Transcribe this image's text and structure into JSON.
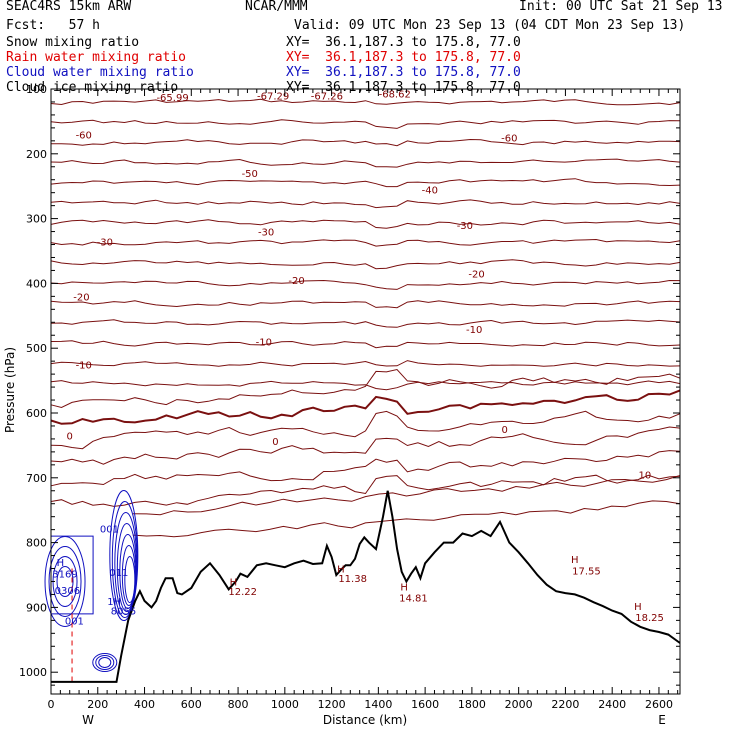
{
  "header": {
    "model": "SEAC4RS 15km ARW",
    "source": "NCAR/MMM",
    "init": "Init: 00 UTC Sat 21 Sep 13",
    "fcst": "Fcst:   57 h",
    "valid": "Valid: 09 UTC Mon 23 Sep 13 (04 CDT Mon 23 Sep 13)"
  },
  "fields": [
    {
      "name": "Snow mixing ratio",
      "xy": "XY=  36.1,187.3 to 175.8, 77.0",
      "color": "#000000"
    },
    {
      "name": "Rain water mixing ratio",
      "xy": "XY=  36.1,187.3 to 175.8, 77.0",
      "color": "#e00000"
    },
    {
      "name": "Cloud water mixing ratio",
      "xy": "XY=  36.1,187.3 to 175.8, 77.0",
      "color": "#1010c0"
    },
    {
      "name": "Cloud ice mixing ratio",
      "xy": "XY=  36.1,187.3 to 175.8, 77.0",
      "color": "#000000"
    }
  ],
  "chart_data": {
    "type": "contour",
    "xlabel": "Distance (km)",
    "ylabel": "Pressure (hPa)",
    "xlim": [
      0,
      2690
    ],
    "ylim": [
      1050,
      100
    ],
    "x_ticks": [
      "0",
      "200",
      "400",
      "600",
      "800",
      "1000",
      "1200",
      "1400",
      "1600",
      "1800",
      "2000",
      "2200",
      "2400",
      "2600"
    ],
    "y_ticks": [
      "100",
      "200",
      "300",
      "400",
      "500",
      "600",
      "700",
      "800",
      "900",
      "1000"
    ],
    "endpoints": {
      "left": "W",
      "right": "E"
    },
    "temperature_contours": [
      {
        "level": -60,
        "pressure": 162
      },
      {
        "level": -50,
        "pressure": 195
      },
      {
        "level": -40,
        "pressure": 240
      },
      {
        "level": -30,
        "pressure": 293
      },
      {
        "level": -20,
        "pressure": 350
      },
      {
        "level": -10,
        "pressure": 425
      },
      {
        "level": 0,
        "pressure": 540
      }
    ],
    "contour_labels": [
      {
        "text": "-65.99",
        "x": 520,
        "p": 112
      },
      {
        "text": "-67.29",
        "x": 950,
        "p": 110
      },
      {
        "text": "-67.26",
        "x": 1180,
        "p": 110
      },
      {
        "text": "-68.62",
        "x": 1470,
        "p": 107
      },
      {
        "text": "-60",
        "x": 140,
        "p": 170
      },
      {
        "text": "-60",
        "x": 1960,
        "p": 175
      },
      {
        "text": "-50",
        "x": 850,
        "p": 230
      },
      {
        "text": "-40",
        "x": 1620,
        "p": 255
      },
      {
        "text": "-30",
        "x": 230,
        "p": 335
      },
      {
        "text": "-30",
        "x": 920,
        "p": 320
      },
      {
        "text": "-30",
        "x": 1770,
        "p": 310
      },
      {
        "text": "-20",
        "x": 130,
        "p": 420
      },
      {
        "text": "-20",
        "x": 1050,
        "p": 395
      },
      {
        "text": "-20",
        "x": 1820,
        "p": 385
      },
      {
        "text": "-10",
        "x": 140,
        "p": 525
      },
      {
        "text": "-10",
        "x": 910,
        "p": 490
      },
      {
        "text": "-10",
        "x": 1810,
        "p": 470
      },
      {
        "text": "10",
        "x": 2540,
        "p": 695
      },
      {
        "text": "0",
        "x": 80,
        "p": 635
      },
      {
        "text": "0",
        "x": 960,
        "p": 643
      },
      {
        "text": "0",
        "x": 1940,
        "p": 625
      }
    ],
    "extrema": [
      {
        "text": "H",
        "x": 780,
        "p": 860
      },
      {
        "text": "12.22",
        "x": 820,
        "p": 875
      },
      {
        "text": "H",
        "x": 1240,
        "p": 840
      },
      {
        "text": "11.38",
        "x": 1290,
        "p": 855
      },
      {
        "text": "H",
        "x": 1510,
        "p": 868
      },
      {
        "text": "14.81",
        "x": 1550,
        "p": 885
      },
      {
        "text": "H",
        "x": 2240,
        "p": 825
      },
      {
        "text": "17.55",
        "x": 2290,
        "p": 843
      },
      {
        "text": "H",
        "x": 2510,
        "p": 898
      },
      {
        "text": "18.25",
        "x": 2560,
        "p": 915
      }
    ],
    "cloud_water_labels": [
      {
        "text": "H",
        "x": 40,
        "p": 830
      },
      {
        "text": "3169",
        "x": 60,
        "p": 848
      },
      {
        "text": "0306",
        "x": 70,
        "p": 873
      },
      {
        "text": "001",
        "x": 250,
        "p": 778
      },
      {
        "text": "011",
        "x": 290,
        "p": 845
      },
      {
        "text": "1H",
        "x": 270,
        "p": 890
      },
      {
        "text": "8055",
        "x": 310,
        "p": 905
      },
      {
        "text": "001",
        "x": 100,
        "p": 920
      }
    ],
    "rain_dash_x": 90,
    "terrain_p": [
      [
        0,
        1015
      ],
      [
        280,
        1015
      ],
      [
        300,
        975
      ],
      [
        330,
        920
      ],
      [
        360,
        890
      ],
      [
        380,
        875
      ],
      [
        400,
        890
      ],
      [
        430,
        900
      ],
      [
        450,
        890
      ],
      [
        470,
        870
      ],
      [
        490,
        855
      ],
      [
        520,
        855
      ],
      [
        540,
        878
      ],
      [
        560,
        880
      ],
      [
        600,
        870
      ],
      [
        640,
        845
      ],
      [
        680,
        832
      ],
      [
        720,
        850
      ],
      [
        760,
        872
      ],
      [
        790,
        860
      ],
      [
        810,
        848
      ],
      [
        840,
        853
      ],
      [
        880,
        835
      ],
      [
        920,
        832
      ],
      [
        960,
        835
      ],
      [
        1000,
        838
      ],
      [
        1040,
        832
      ],
      [
        1080,
        828
      ],
      [
        1120,
        833
      ],
      [
        1160,
        832
      ],
      [
        1180,
        805
      ],
      [
        1200,
        822
      ],
      [
        1220,
        850
      ],
      [
        1240,
        842
      ],
      [
        1260,
        835
      ],
      [
        1280,
        835
      ],
      [
        1300,
        825
      ],
      [
        1320,
        802
      ],
      [
        1340,
        792
      ],
      [
        1360,
        800
      ],
      [
        1390,
        810
      ],
      [
        1420,
        760
      ],
      [
        1440,
        720
      ],
      [
        1460,
        760
      ],
      [
        1480,
        810
      ],
      [
        1500,
        845
      ],
      [
        1520,
        860
      ],
      [
        1540,
        848
      ],
      [
        1560,
        838
      ],
      [
        1580,
        855
      ],
      [
        1600,
        832
      ],
      [
        1640,
        815
      ],
      [
        1680,
        800
      ],
      [
        1720,
        800
      ],
      [
        1760,
        786
      ],
      [
        1800,
        790
      ],
      [
        1840,
        782
      ],
      [
        1880,
        790
      ],
      [
        1920,
        768
      ],
      [
        1960,
        800
      ],
      [
        2000,
        815
      ],
      [
        2040,
        832
      ],
      [
        2080,
        850
      ],
      [
        2120,
        865
      ],
      [
        2160,
        875
      ],
      [
        2200,
        878
      ],
      [
        2240,
        880
      ],
      [
        2280,
        885
      ],
      [
        2320,
        892
      ],
      [
        2360,
        898
      ],
      [
        2400,
        905
      ],
      [
        2440,
        910
      ],
      [
        2480,
        922
      ],
      [
        2520,
        930
      ],
      [
        2560,
        935
      ],
      [
        2600,
        938
      ],
      [
        2640,
        942
      ],
      [
        2690,
        955
      ]
    ]
  }
}
